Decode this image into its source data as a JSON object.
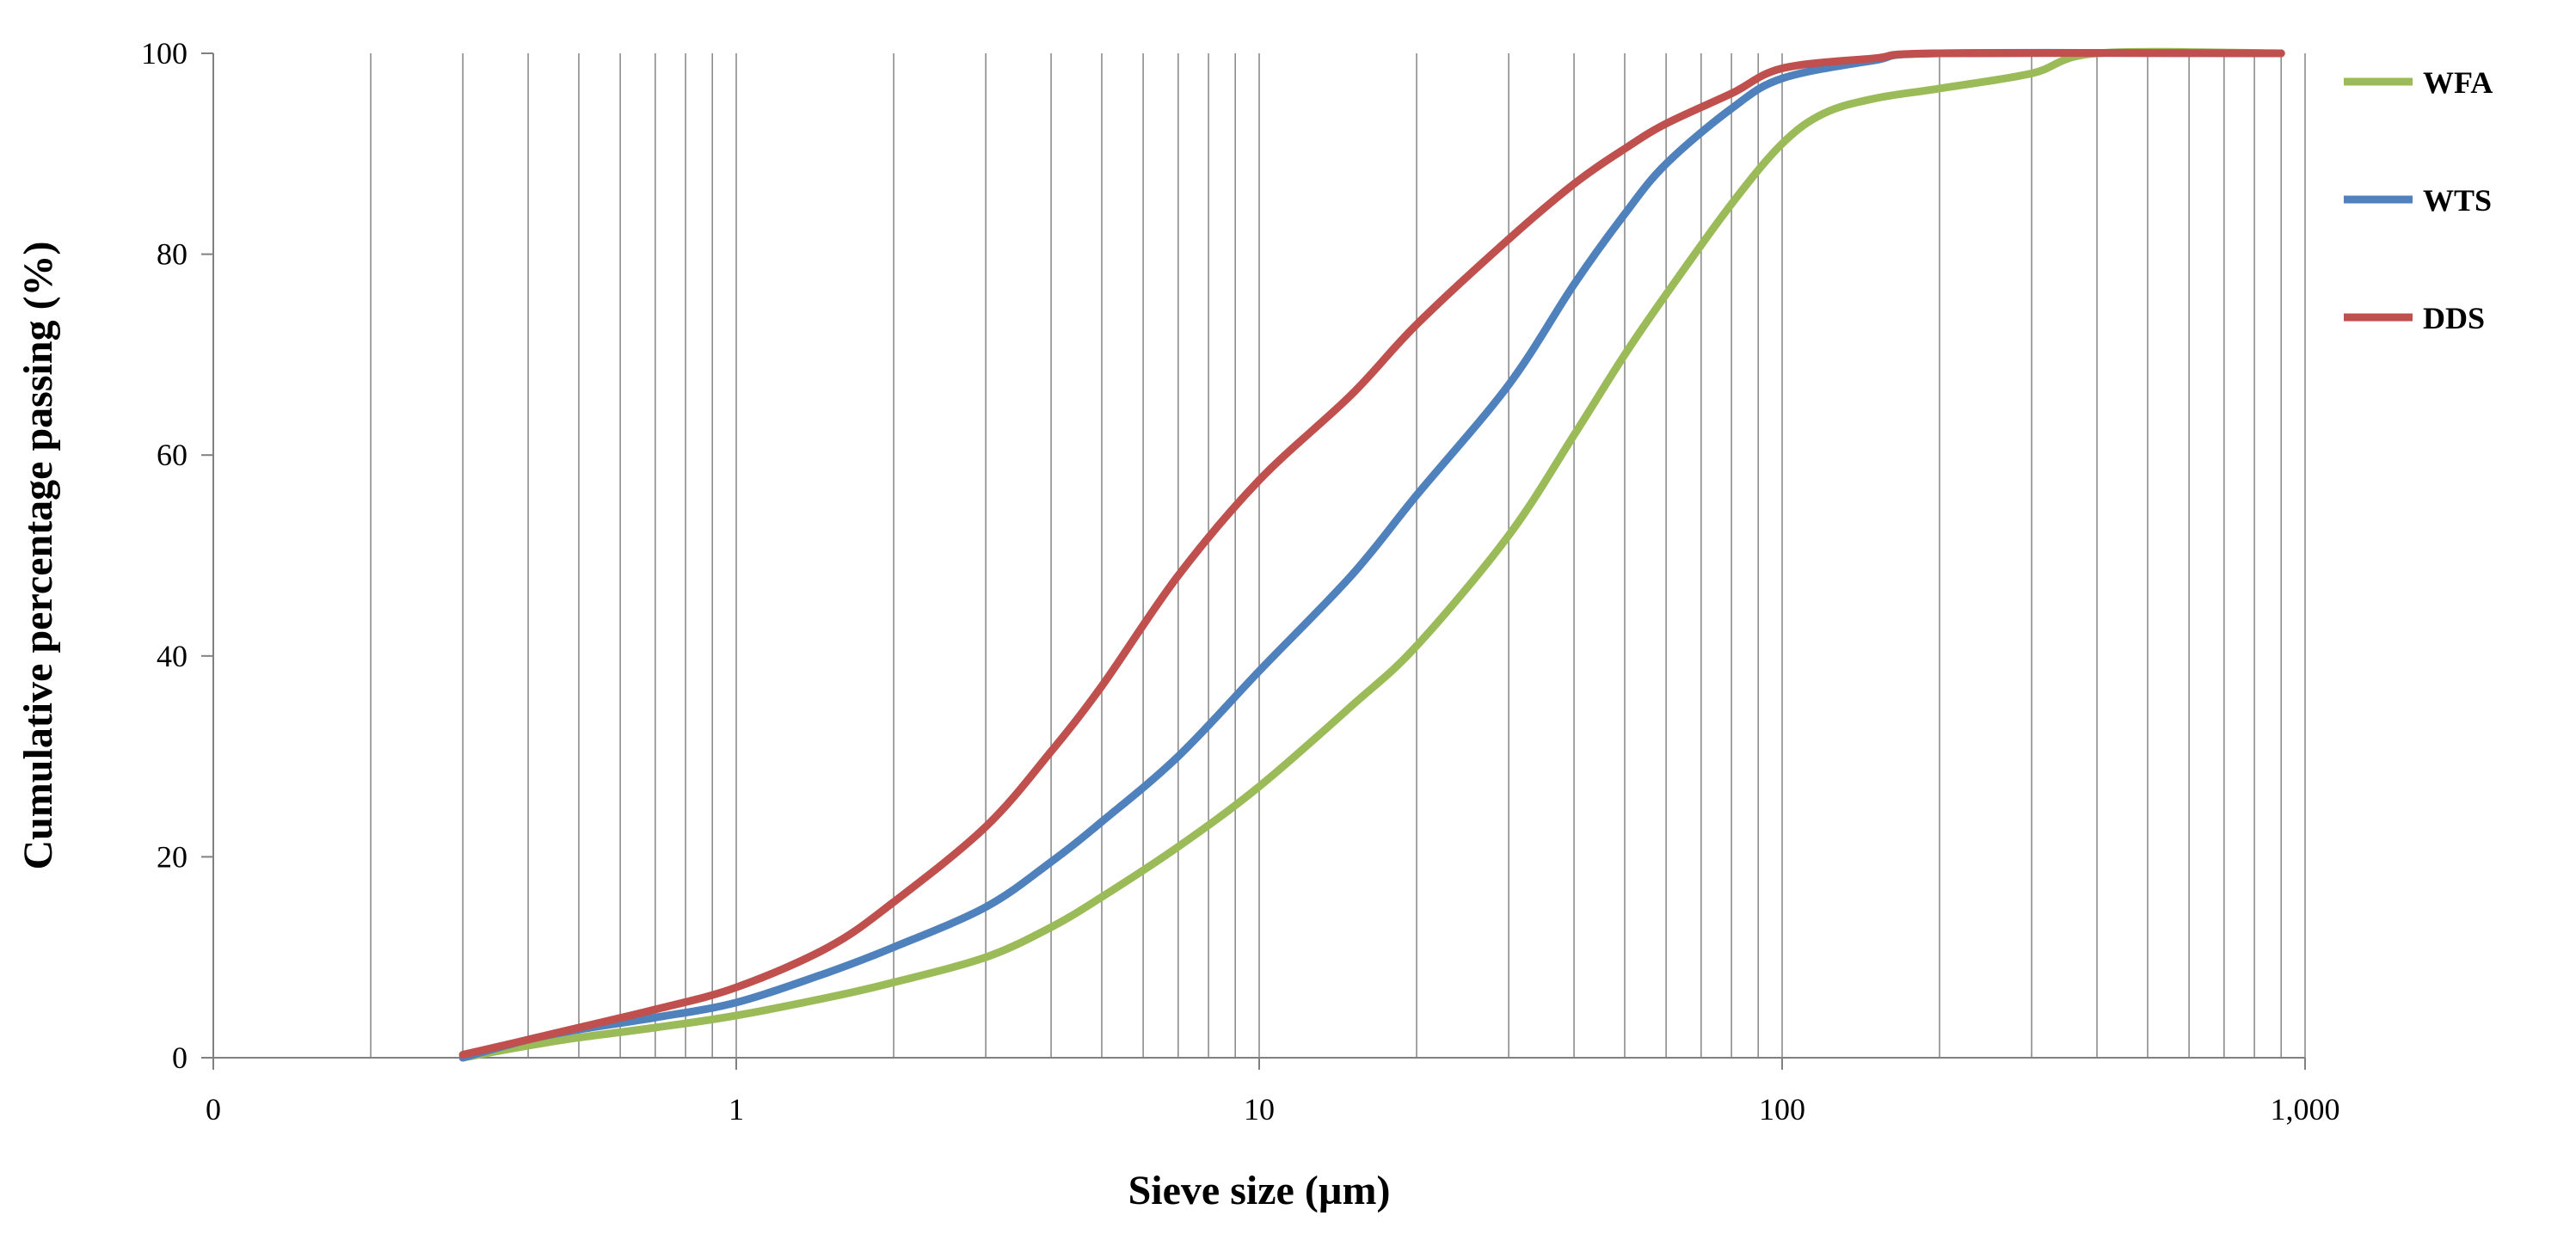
{
  "chart_data": {
    "type": "line",
    "xscale": "log",
    "xlabel": "Sieve size (µm)",
    "ylabel": "Cumulative percentage passing (%)",
    "xlim": [
      0.1,
      1000
    ],
    "ylim": [
      0,
      100
    ],
    "x_tick_labels": [
      "0",
      "1",
      "10",
      "100",
      "1,000"
    ],
    "y_tick_labels": [
      "0",
      "20",
      "40",
      "60",
      "80",
      "100"
    ],
    "grid": "vertical minor and major lines on x",
    "legend_position": "right",
    "series": [
      {
        "name": "WFA",
        "color": "#9BBB59",
        "points": [
          [
            0.3,
            0
          ],
          [
            0.4,
            1.2
          ],
          [
            0.5,
            2
          ],
          [
            0.7,
            3
          ],
          [
            1,
            4.2
          ],
          [
            1.5,
            6
          ],
          [
            2,
            7.5
          ],
          [
            3,
            10
          ],
          [
            4,
            13
          ],
          [
            5,
            16
          ],
          [
            7,
            21
          ],
          [
            10,
            27
          ],
          [
            15,
            35
          ],
          [
            20,
            41
          ],
          [
            30,
            52
          ],
          [
            40,
            62
          ],
          [
            50,
            70
          ],
          [
            60,
            76
          ],
          [
            80,
            85
          ],
          [
            100,
            91
          ],
          [
            120,
            94
          ],
          [
            150,
            95.5
          ],
          [
            200,
            96.5
          ],
          [
            300,
            98
          ],
          [
            400,
            100
          ],
          [
            900,
            100
          ]
        ]
      },
      {
        "name": "WTS",
        "color": "#4F81BD",
        "points": [
          [
            0.3,
            0
          ],
          [
            0.4,
            1.8
          ],
          [
            0.5,
            2.8
          ],
          [
            0.7,
            4
          ],
          [
            1,
            5.5
          ],
          [
            1.5,
            8.5
          ],
          [
            2,
            11
          ],
          [
            3,
            15
          ],
          [
            4,
            19.5
          ],
          [
            5,
            23.5
          ],
          [
            7,
            30
          ],
          [
            10,
            38.5
          ],
          [
            15,
            48
          ],
          [
            20,
            56
          ],
          [
            30,
            67
          ],
          [
            40,
            77
          ],
          [
            50,
            84
          ],
          [
            60,
            89
          ],
          [
            80,
            94.5
          ],
          [
            100,
            97.5
          ],
          [
            150,
            99.3
          ],
          [
            200,
            100
          ],
          [
            900,
            100
          ]
        ]
      },
      {
        "name": "DDS",
        "color": "#C0504D",
        "points": [
          [
            0.3,
            0.3
          ],
          [
            0.4,
            1.8
          ],
          [
            0.5,
            3
          ],
          [
            0.7,
            4.8
          ],
          [
            1,
            7
          ],
          [
            1.5,
            11
          ],
          [
            2,
            15.5
          ],
          [
            3,
            23
          ],
          [
            4,
            30.5
          ],
          [
            5,
            37
          ],
          [
            7,
            48
          ],
          [
            10,
            57.5
          ],
          [
            15,
            66
          ],
          [
            20,
            73
          ],
          [
            30,
            81.5
          ],
          [
            40,
            87
          ],
          [
            50,
            90.5
          ],
          [
            60,
            93
          ],
          [
            80,
            96
          ],
          [
            100,
            98.5
          ],
          [
            150,
            99.5
          ],
          [
            200,
            100
          ],
          [
            900,
            100
          ]
        ]
      }
    ]
  }
}
